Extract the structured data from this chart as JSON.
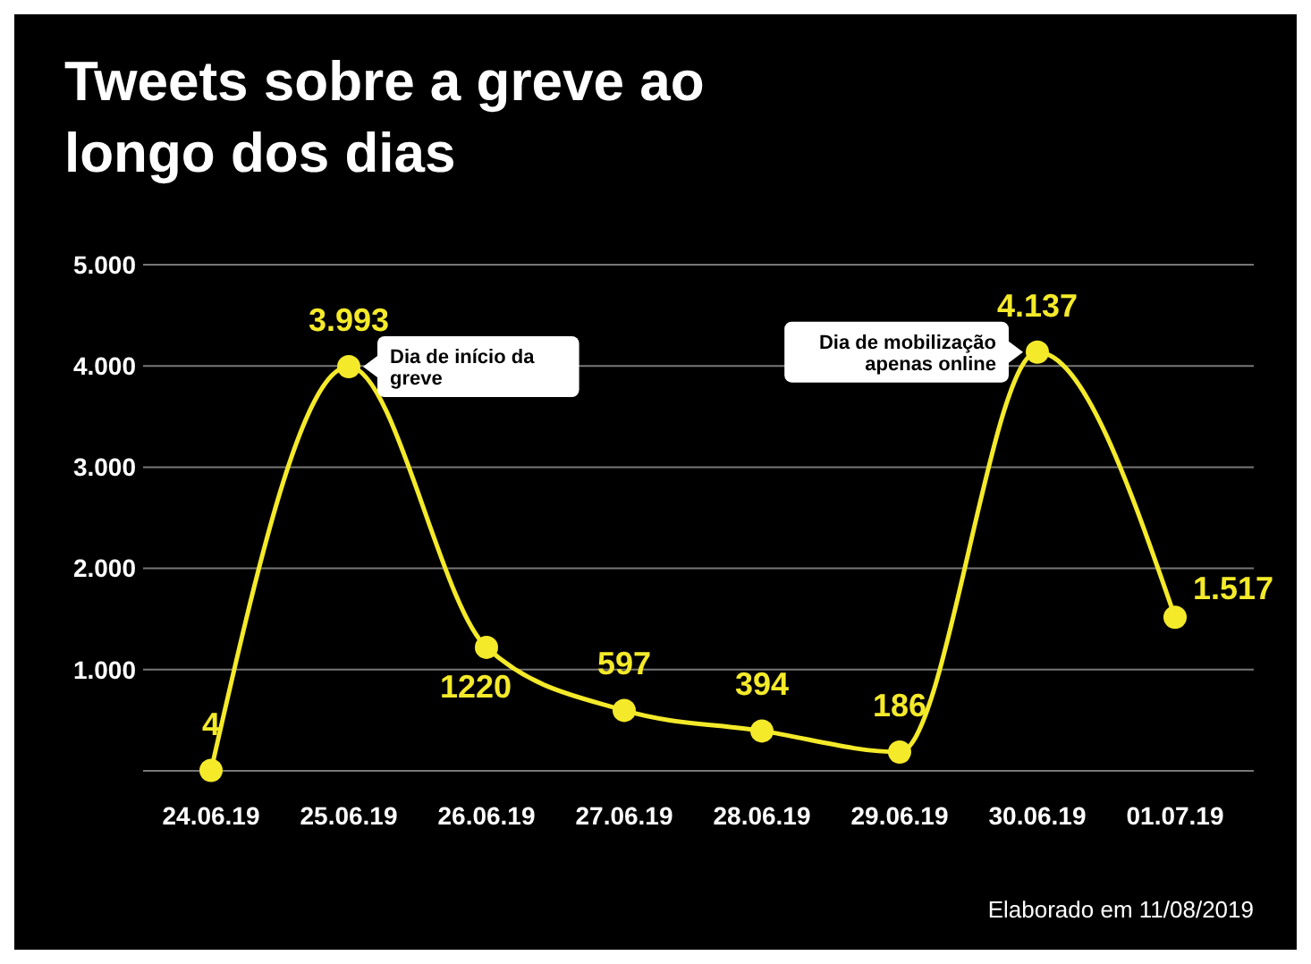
{
  "chart_data": {
    "type": "line",
    "title": "Tweets sobre a greve ao longo dos dias",
    "categories": [
      "24.06.19",
      "25.06.19",
      "26.06.19",
      "27.06.19",
      "28.06.19",
      "29.06.19",
      "30.06.19",
      "01.07.19"
    ],
    "series": [
      {
        "color": "#f4ea2a",
        "values": [
          4,
          3993,
          1220,
          597,
          394,
          186,
          4137,
          1517
        ],
        "value_labels": [
          "4",
          "3.993",
          "1220",
          "597",
          "394",
          "186",
          "4.137",
          "1.517"
        ]
      }
    ],
    "ylim": [
      0,
      5000
    ],
    "yticks": [
      {
        "value": 1000,
        "label": "1.000"
      },
      {
        "value": 2000,
        "label": "2.000"
      },
      {
        "value": 3000,
        "label": "3.000"
      },
      {
        "value": 4000,
        "label": "4.000"
      },
      {
        "value": 5000,
        "label": "5.000"
      }
    ],
    "grid": "y",
    "marker": "circle",
    "line_style": "solid",
    "annotations": [
      {
        "text": "Dia de início da greve",
        "x": "25.06.19",
        "y": 3993
      },
      {
        "text": "Dia de mobilização apenas online",
        "x": "30.06.19",
        "y": 4137
      },
      "Elaborado em 11/08/2019"
    ]
  }
}
